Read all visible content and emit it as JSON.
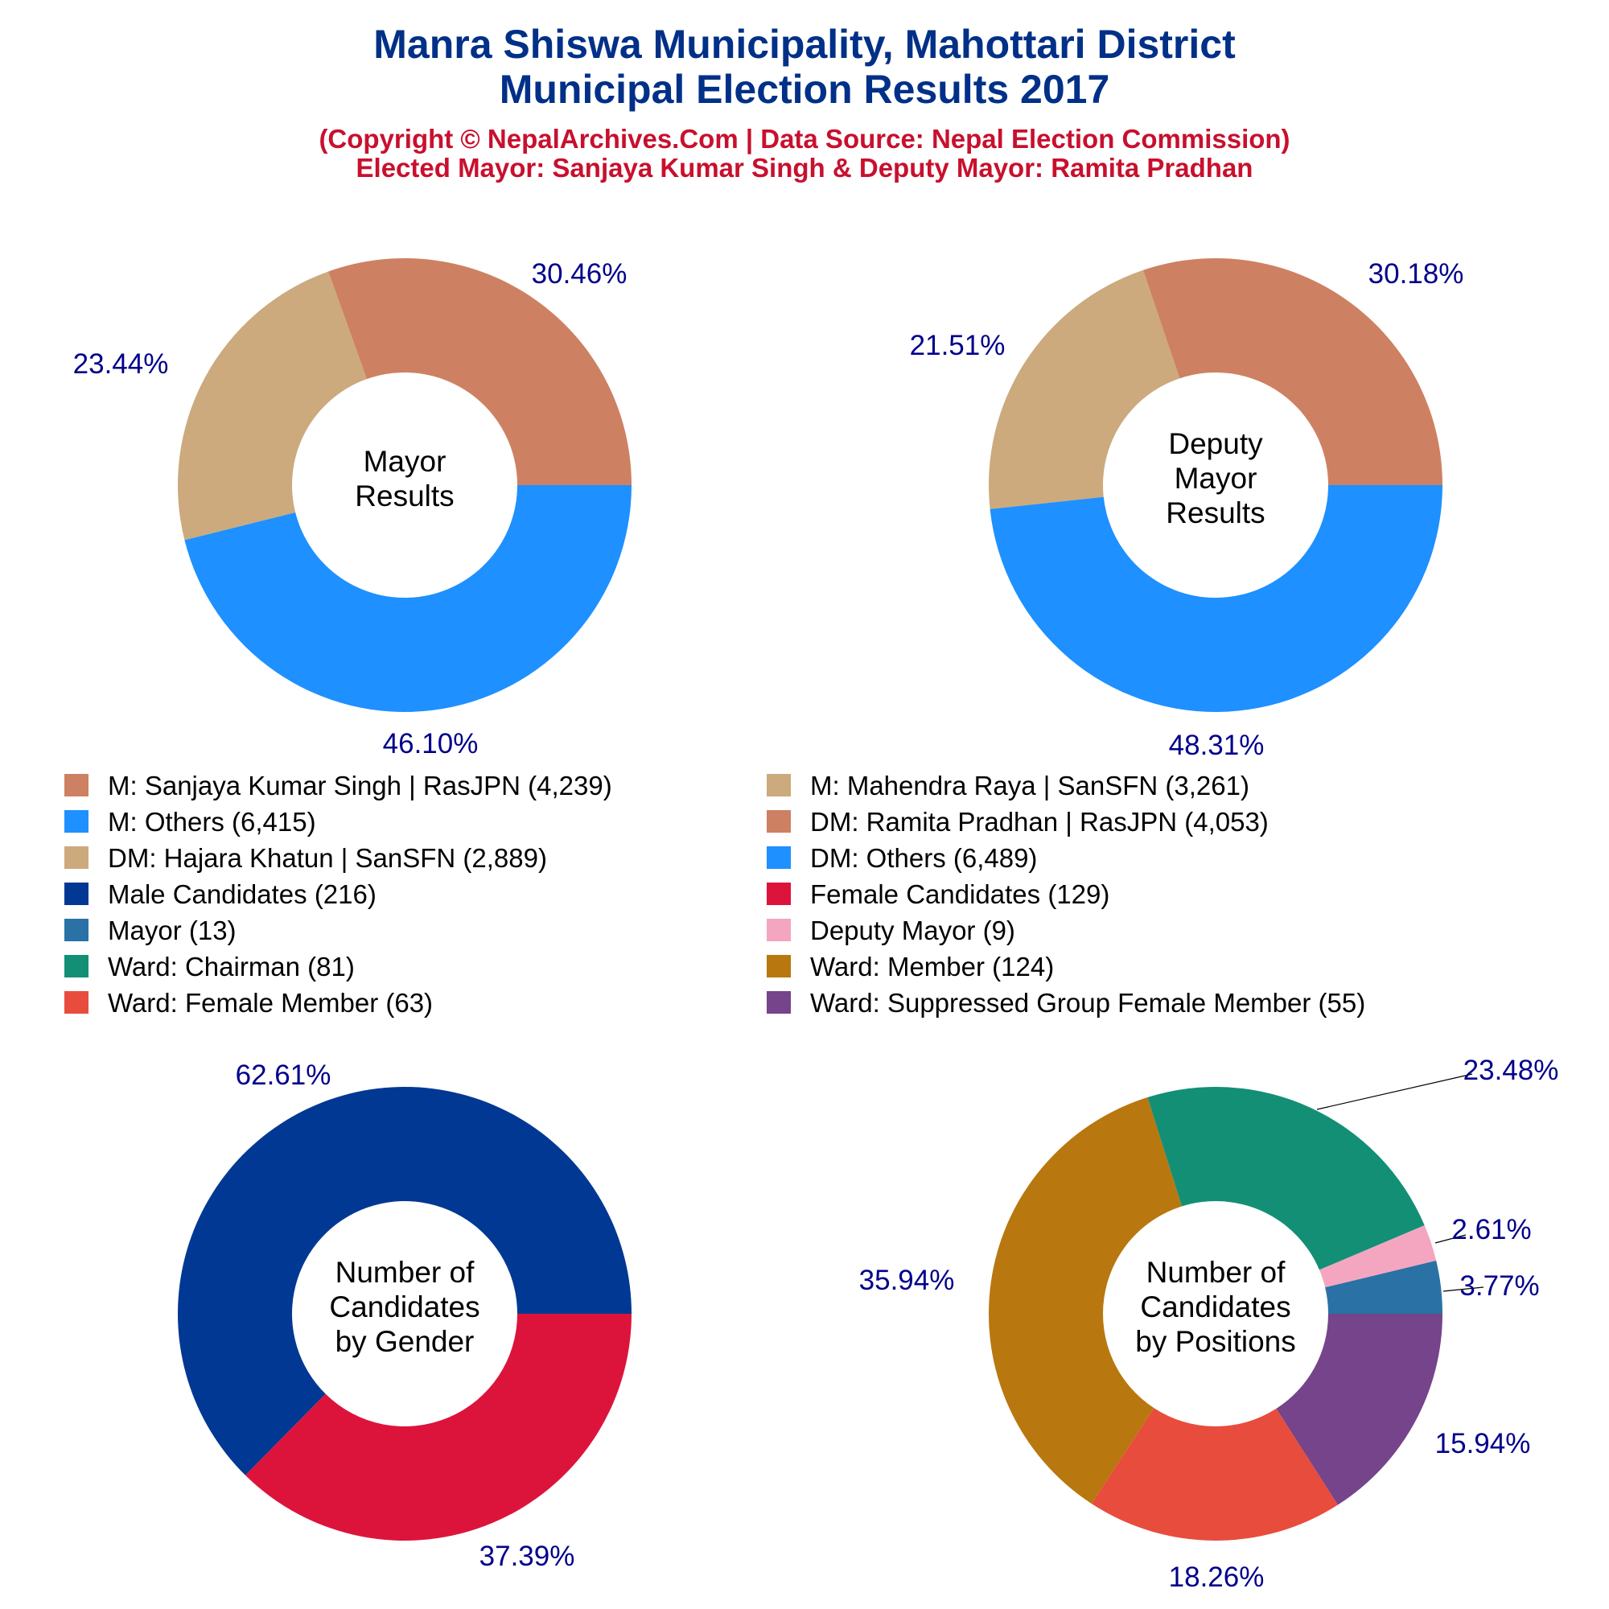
{
  "title": [
    "Manra Shiswa Municipality, Mahottari District",
    "Municipal Election Results 2017"
  ],
  "subtitle": [
    "(Copyright © NepalArchives.Com | Data Source: Nepal Election Commission)",
    "Elected Mayor: Sanjaya Kumar Singh & Deputy Mayor: Ramita Pradhan"
  ],
  "chart_data": [
    {
      "type": "pie",
      "center_label": [
        "Mayor",
        "Results"
      ],
      "slices": [
        {
          "label": "M: Sanjaya Kumar Singh | RasJPN",
          "value": 4239,
          "pct": "30.46%",
          "color": "#cd8162"
        },
        {
          "label": "M: Mahendra Raya | SanSFN",
          "value": 3261,
          "pct": "23.44%",
          "color": "#ccaa7d"
        },
        {
          "label": "M: Others",
          "value": 6415,
          "pct": "46.10%",
          "color": "#1e90ff"
        }
      ]
    },
    {
      "type": "pie",
      "center_label": [
        "Deputy",
        "Mayor",
        "Results"
      ],
      "slices": [
        {
          "label": "DM: Ramita Pradhan | RasJPN",
          "value": 4053,
          "pct": "30.18%",
          "color": "#cd8162"
        },
        {
          "label": "DM: Hajara Khatun | SanSFN",
          "value": 2889,
          "pct": "21.51%",
          "color": "#ccaa7d"
        },
        {
          "label": "DM: Others",
          "value": 6489,
          "pct": "48.31%",
          "color": "#1e90ff"
        }
      ]
    },
    {
      "type": "pie",
      "center_label": [
        "Number of",
        "Candidates",
        "by Gender"
      ],
      "slices": [
        {
          "label": "Male Candidates",
          "value": 216,
          "pct": "62.61%",
          "color": "#003893"
        },
        {
          "label": "Female Candidates",
          "value": 129,
          "pct": "37.39%",
          "color": "#dc143c"
        }
      ]
    },
    {
      "type": "pie",
      "center_label": [
        "Number of",
        "Candidates",
        "by Positions"
      ],
      "slices": [
        {
          "label": "Mayor",
          "value": 13,
          "pct": "3.77%",
          "color": "#2a72a5"
        },
        {
          "label": "Deputy Mayor",
          "value": 9,
          "pct": "2.61%",
          "color": "#f4a6c1"
        },
        {
          "label": "Ward: Chairman",
          "value": 81,
          "pct": "23.48%",
          "color": "#138f76"
        },
        {
          "label": "Ward: Member",
          "value": 124,
          "pct": "35.94%",
          "color": "#b8770f"
        },
        {
          "label": "Ward: Female Member",
          "value": 63,
          "pct": "18.26%",
          "color": "#e84c3d"
        },
        {
          "label": "Ward: Suppressed Group Female Member",
          "value": 55,
          "pct": "15.94%",
          "color": "#75448a"
        }
      ]
    }
  ],
  "legend": [
    {
      "text": "M: Sanjaya Kumar Singh | RasJPN (4,239)",
      "color": "#cd8162"
    },
    {
      "text": "M: Mahendra Raya | SanSFN (3,261)",
      "color": "#ccaa7d"
    },
    {
      "text": "M: Others (6,415)",
      "color": "#1e90ff"
    },
    {
      "text": "DM: Ramita Pradhan | RasJPN (4,053)",
      "color": "#cd8162"
    },
    {
      "text": "DM: Hajara Khatun | SanSFN (2,889)",
      "color": "#ccaa7d"
    },
    {
      "text": "DM: Others (6,489)",
      "color": "#1e90ff"
    },
    {
      "text": "Male Candidates (216)",
      "color": "#003893"
    },
    {
      "text": "Female Candidates (129)",
      "color": "#dc143c"
    },
    {
      "text": "Mayor (13)",
      "color": "#2a72a5"
    },
    {
      "text": "Deputy Mayor (9)",
      "color": "#f4a6c1"
    },
    {
      "text": "Ward: Chairman (81)",
      "color": "#138f76"
    },
    {
      "text": "Ward: Member (124)",
      "color": "#b8770f"
    },
    {
      "text": "Ward: Female Member (63)",
      "color": "#e84c3d"
    },
    {
      "text": "Ward: Suppressed Group Female Member (55)",
      "color": "#75448a"
    }
  ]
}
